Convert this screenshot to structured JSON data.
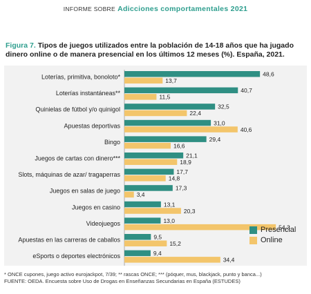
{
  "header": {
    "prefix": "INFORME SOBRE",
    "topic": "Adicciones comportamentales 2021"
  },
  "figure": {
    "label": "Figura 7.",
    "title": "Tipos de juegos utilizados entre la población de 14-18 años que ha jugado dinero online o de manera presencial en los últimos 12 meses (%). España, 2021."
  },
  "colors": {
    "accent": "#2e9e8e",
    "presencial": "#2f8f83",
    "online": "#f3c56b",
    "chart_bg": "#f2f2f2"
  },
  "chart_data": {
    "type": "bar",
    "orientation": "horizontal",
    "categories": [
      "Loterías, primitiva, bonoloto*",
      "Loterías instantáneas**",
      "Quinielas de fútbol y/o quinigol",
      "Apuestas deportivas",
      "Bingo",
      "Juegos de cartas con dinero***",
      "Slots, máquinas de azar/ tragaperras",
      "Juegos en salas de juego",
      "Juegos en casino",
      "Videojuegos",
      "Apuestas en las carreras de caballos",
      "eSports o deportes electrónicos"
    ],
    "series": [
      {
        "name": "Presencial",
        "values": [
          48.6,
          40.7,
          32.5,
          31.0,
          29.4,
          21.1,
          17.7,
          17.3,
          13.1,
          13.0,
          9.5,
          9.4
        ]
      },
      {
        "name": "Online",
        "values": [
          13.7,
          11.5,
          22.4,
          40.6,
          16.6,
          18.9,
          14.8,
          3.4,
          20.3,
          54.3,
          15.2,
          34.4
        ]
      }
    ],
    "value_labels": {
      "Presencial": [
        "48,6",
        "40,7",
        "32,5",
        "31,0",
        "29,4",
        "21,1",
        "17,7",
        "17,3",
        "13,1",
        "13,0",
        "9,5",
        "9,4"
      ],
      "Online": [
        "13,7",
        "11,5",
        "22,4",
        "40,6",
        "16,6",
        "18,9",
        "14,8",
        "3,4",
        "20,3",
        "54,3",
        "15,2",
        "34,4"
      ]
    },
    "xlim": [
      0,
      56
    ],
    "grid": false,
    "legend_position": "right"
  },
  "notes": {
    "line1": "* ONCE cupones, juego activo eurojackpot, 7/39; ** rascas ONCE; *** (póquer, mus, blackjack, punto y banca...)",
    "line2": "FUENTE: OEDA. Encuesta sobre Uso de Drogas en Enseñanzas Secundarias en España (ESTUDES)"
  }
}
